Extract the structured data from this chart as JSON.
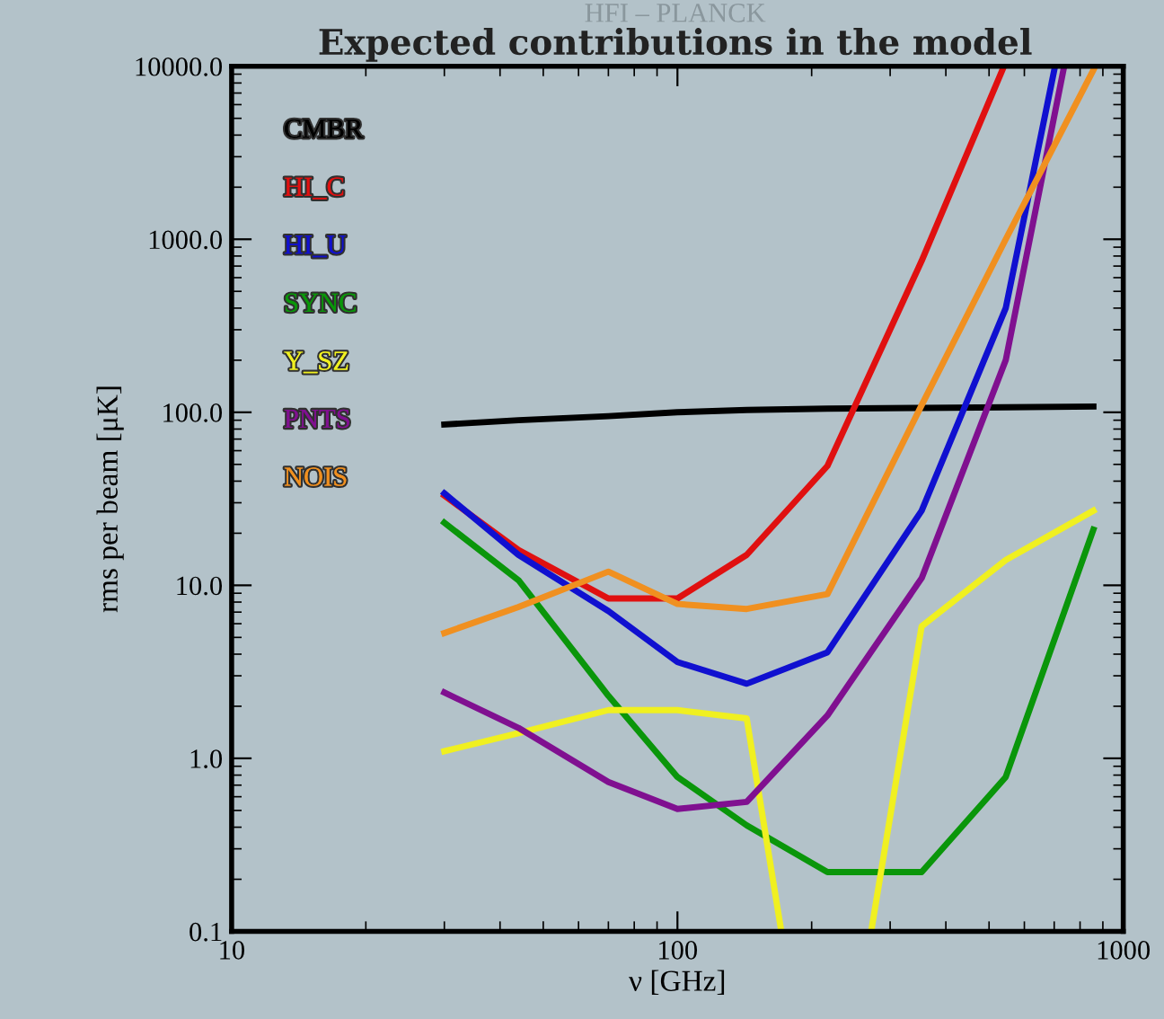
{
  "chart_data": {
    "type": "line",
    "title": "Expected contributions in the model",
    "subtitle": "HFI – PLANCK",
    "xlabel": "ν [GHz]",
    "ylabel": "rms per beam [μK]",
    "log": "xy",
    "xlim": [
      10,
      1000
    ],
    "ylim": [
      0.1,
      10000
    ],
    "xticks": [
      10,
      100,
      1000
    ],
    "yticks": [
      {
        "value": 0.1,
        "label": "0.1"
      },
      {
        "value": 1,
        "label": "1.0"
      },
      {
        "value": 10,
        "label": "10.0"
      },
      {
        "value": 100,
        "label": "100.0"
      },
      {
        "value": 1000,
        "label": "1000.0"
      },
      {
        "value": 10000,
        "label": "10000.0"
      }
    ],
    "grid": false,
    "legend": "top left",
    "marker": "none",
    "line_style": "solid",
    "series": [
      {
        "name": "CMBR",
        "color": "#000000",
        "x": [
          30,
          44,
          70,
          100,
          143,
          217,
          353,
          545,
          857
        ],
        "values": [
          85,
          90,
          95,
          100,
          103,
          105,
          106,
          107,
          108
        ]
      },
      {
        "name": "HI_C",
        "color": "#e01010",
        "x": [
          30,
          44,
          70,
          100,
          143,
          217,
          353,
          540
        ],
        "values": [
          33,
          16,
          8.4,
          8.4,
          15,
          49,
          750,
          10000
        ]
      },
      {
        "name": "HI_U",
        "color": "#1010d0",
        "x": [
          30,
          44,
          70,
          100,
          143,
          217,
          353,
          545,
          703
        ],
        "values": [
          34,
          15,
          7.1,
          3.6,
          2.7,
          4.1,
          27,
          400,
          10000
        ]
      },
      {
        "name": "SYNC",
        "color": "#0a960a",
        "x": [
          30,
          44,
          70,
          100,
          143,
          217,
          353,
          545,
          857
        ],
        "values": [
          23,
          10.7,
          2.3,
          0.78,
          0.41,
          0.22,
          0.22,
          0.78,
          21
        ]
      },
      {
        "name": "Y_SZ",
        "color": "#f0f020",
        "x": [
          30,
          44,
          70,
          100,
          143,
          171,
          217,
          272,
          353,
          545,
          857
        ],
        "values": [
          1.1,
          1.4,
          1.9,
          1.9,
          1.7,
          0.1,
          null,
          0.1,
          5.8,
          14,
          27
        ]
      },
      {
        "name": "PNTS",
        "color": "#801090",
        "x": [
          30,
          44,
          70,
          100,
          143,
          217,
          353,
          545,
          737
        ],
        "values": [
          2.4,
          1.5,
          0.73,
          0.51,
          0.56,
          1.77,
          11,
          200,
          10000
        ]
      },
      {
        "name": "NOIS",
        "color": "#f09020",
        "x": [
          30,
          44,
          70,
          100,
          143,
          217,
          353,
          545,
          857
        ],
        "values": [
          5.3,
          7.5,
          12,
          7.8,
          7.3,
          8.9,
          110,
          1000,
          9500
        ]
      }
    ]
  }
}
